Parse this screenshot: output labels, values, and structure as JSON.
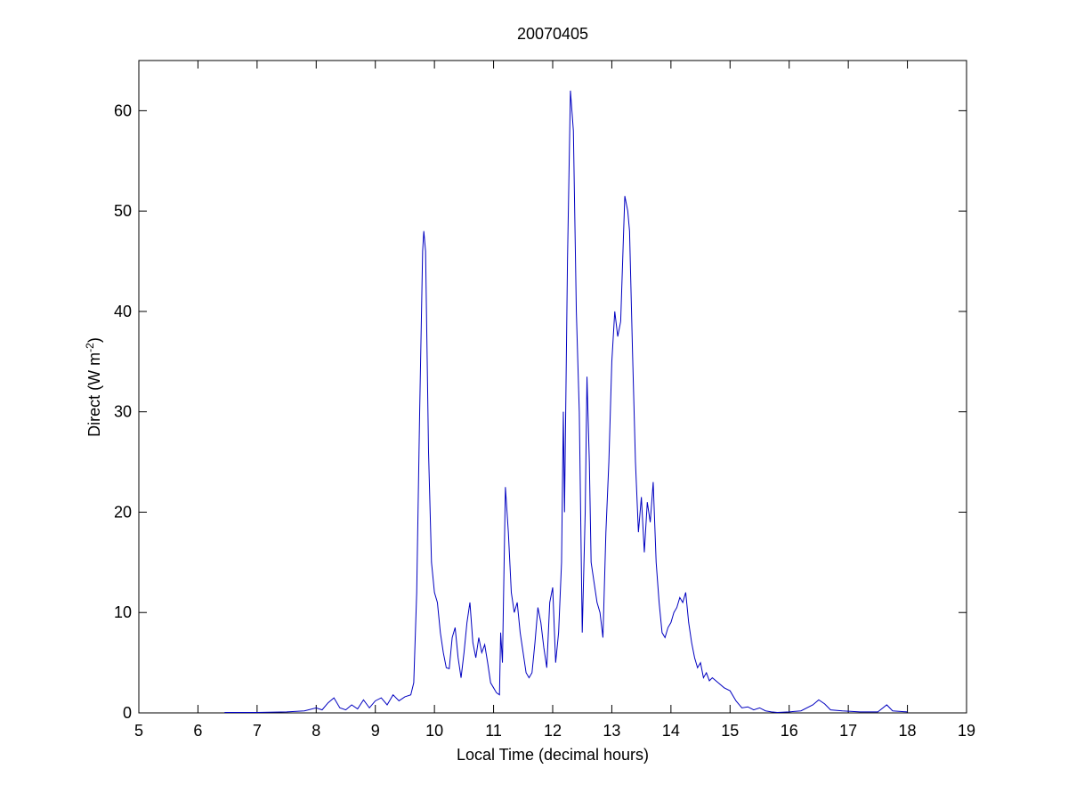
{
  "chart_data": {
    "type": "line",
    "title": "20070405",
    "xlabel": "Local Time (decimal hours)",
    "ylabel": {
      "text": "Direct (W m",
      "superscript": "-2",
      "suffix": ")"
    },
    "xlim": [
      5,
      19
    ],
    "xticks": [
      5,
      6,
      7,
      8,
      9,
      10,
      11,
      12,
      13,
      14,
      15,
      16,
      17,
      18,
      19
    ],
    "ylim": [
      0,
      65
    ],
    "yticks": [
      0,
      10,
      20,
      30,
      40,
      50,
      60
    ],
    "grid": false,
    "series": [
      {
        "color": "#0000c0",
        "x": [
          6.45,
          7.0,
          7.5,
          7.8,
          8.0,
          8.1,
          8.2,
          8.3,
          8.4,
          8.5,
          8.6,
          8.7,
          8.8,
          8.9,
          9.0,
          9.1,
          9.2,
          9.3,
          9.4,
          9.5,
          9.6,
          9.65,
          9.7,
          9.75,
          9.8,
          9.82,
          9.85,
          9.9,
          9.95,
          10.0,
          10.05,
          10.1,
          10.15,
          10.2,
          10.25,
          10.3,
          10.35,
          10.4,
          10.45,
          10.5,
          10.55,
          10.6,
          10.65,
          10.7,
          10.75,
          10.8,
          10.85,
          10.9,
          10.95,
          11.0,
          11.05,
          11.1,
          11.12,
          11.15,
          11.2,
          11.25,
          11.3,
          11.35,
          11.4,
          11.45,
          11.5,
          11.55,
          11.6,
          11.65,
          11.7,
          11.75,
          11.8,
          11.85,
          11.9,
          11.95,
          12.0,
          12.05,
          12.1,
          12.15,
          12.18,
          12.2,
          12.25,
          12.3,
          12.35,
          12.4,
          12.45,
          12.5,
          12.55,
          12.58,
          12.62,
          12.65,
          12.7,
          12.75,
          12.8,
          12.85,
          12.9,
          12.95,
          13.0,
          13.05,
          13.1,
          13.15,
          13.2,
          13.22,
          13.27,
          13.3,
          13.35,
          13.4,
          13.45,
          13.5,
          13.55,
          13.6,
          13.65,
          13.7,
          13.75,
          13.8,
          13.85,
          13.9,
          13.95,
          14.0,
          14.05,
          14.1,
          14.15,
          14.2,
          14.25,
          14.3,
          14.35,
          14.4,
          14.45,
          14.5,
          14.55,
          14.6,
          14.65,
          14.7,
          14.8,
          14.9,
          15.0,
          15.1,
          15.2,
          15.3,
          15.4,
          15.5,
          15.6,
          15.7,
          15.8,
          16.0,
          16.2,
          16.4,
          16.5,
          16.6,
          16.7,
          16.9,
          17.2,
          17.5,
          17.65,
          17.75,
          18.0
        ],
        "values": [
          0.05,
          0.05,
          0.1,
          0.2,
          0.5,
          0.3,
          1.0,
          1.5,
          0.5,
          0.3,
          0.8,
          0.4,
          1.3,
          0.5,
          1.2,
          1.5,
          0.8,
          1.8,
          1.2,
          1.6,
          1.8,
          3,
          12,
          30,
          46,
          48,
          46,
          26,
          15,
          12,
          11,
          8,
          6,
          4.5,
          4.4,
          7.5,
          8.5,
          5.5,
          3.5,
          6,
          9,
          11,
          7,
          5.5,
          7.5,
          6,
          6.8,
          5,
          3,
          2.5,
          2,
          1.8,
          8,
          5,
          22.5,
          18,
          12,
          10,
          11,
          8,
          6,
          4,
          3.5,
          4,
          7,
          10.5,
          9,
          6.5,
          4.5,
          11,
          12.5,
          5,
          8,
          15,
          30,
          20,
          45,
          62,
          58,
          40,
          30,
          8,
          20,
          33.5,
          25,
          15,
          13,
          11,
          10,
          7.5,
          18,
          25,
          35,
          40,
          37.5,
          39,
          48,
          51.5,
          50,
          48,
          36,
          25,
          18,
          21.5,
          16,
          21,
          19,
          23,
          15,
          11,
          8,
          7.5,
          8.5,
          9,
          10,
          10.5,
          11.5,
          11,
          12,
          9,
          7,
          5.5,
          4.5,
          5,
          3.5,
          4,
          3.2,
          3.5,
          3,
          2.5,
          2.2,
          1.2,
          0.5,
          0.6,
          0.3,
          0.5,
          0.2,
          0.1,
          0.05,
          0.1,
          0.2,
          0.8,
          1.3,
          0.9,
          0.3,
          0.2,
          0.1,
          0.1,
          0.8,
          0.2,
          0.1
        ]
      }
    ]
  }
}
